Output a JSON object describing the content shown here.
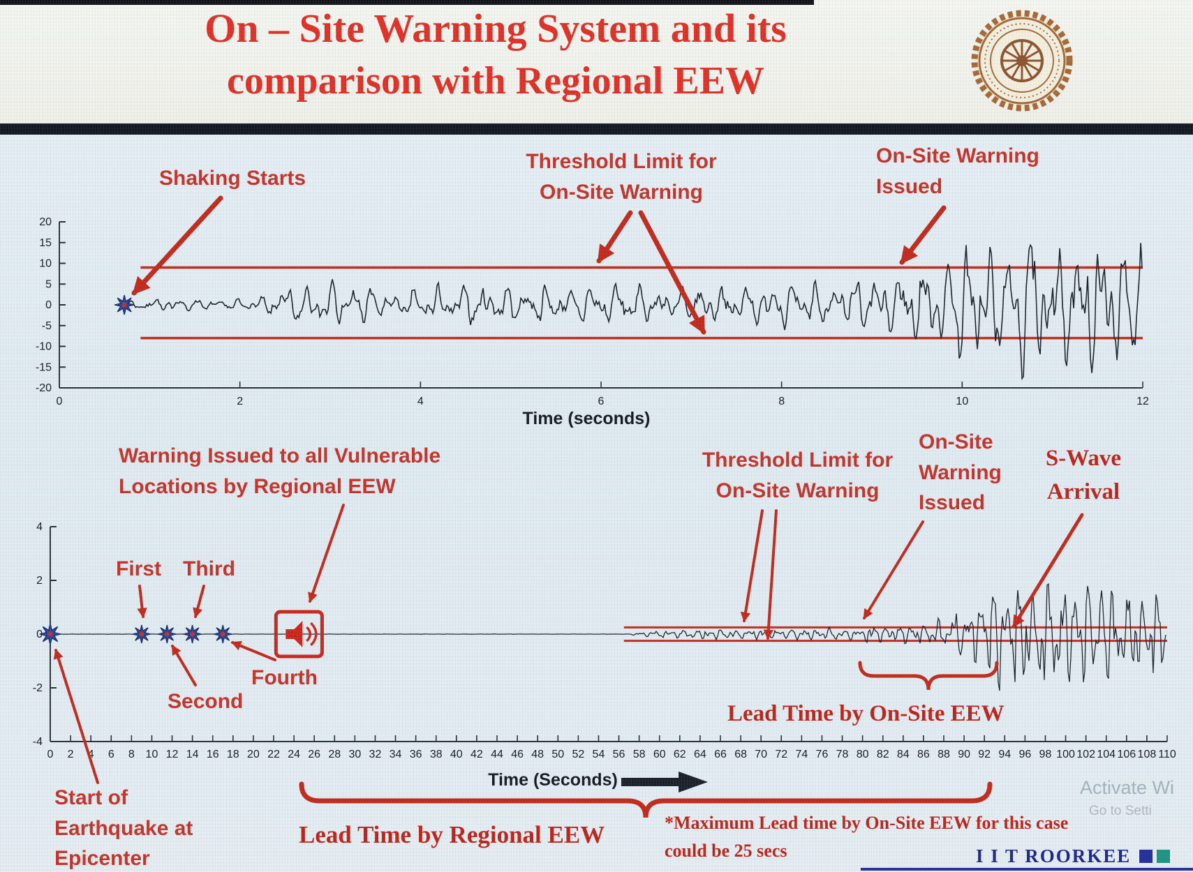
{
  "slide": {
    "title_line1": "On – Site Warning System and its",
    "title_line2": "comparison with Regional EEW",
    "logo": "iit-roorkee-circular-seal",
    "brand": "I I T ROORKEE",
    "watermark_line1": "Activate Wi",
    "watermark_line2": "Go to Setti"
  },
  "top_chart_annotations": {
    "shaking_starts": "Shaking Starts",
    "threshold_line1": "Threshold Limit for",
    "threshold_line2": "On-Site Warning",
    "issued_line1": "On-Site Warning",
    "issued_line2": "Issued"
  },
  "bottom_chart_annotations": {
    "regional_line1": "Warning Issued to all Vulnerable",
    "regional_line2": "Locations by Regional EEW",
    "first": "First",
    "second": "Second",
    "third": "Third",
    "fourth": "Fourth",
    "start_line1": "Start of",
    "start_line2": "Earthquake at",
    "start_line3": "Epicenter",
    "threshold_line1": "Threshold Limit for",
    "threshold_line2": "On-Site Warning",
    "onsite_line1": "On-Site",
    "onsite_line2": "Warning",
    "onsite_line3": "Issued",
    "swave_line1": "S-Wave",
    "swave_line2": "Arrival",
    "lead_time_onsite": "Lead Time by On-Site EEW",
    "lead_time_regional": "Lead Time by Regional EEW",
    "note_line1": "*Maximum Lead time by On-Site EEW for this case",
    "note_line2": "could be 25 secs"
  },
  "colors": {
    "title_red": "#e5271a",
    "annotation_red": "#c9291c",
    "threshold_red": "#c5200f",
    "trace_black": "#151a23",
    "star_blue": "#2b3f9d",
    "brand_navy": "#171d86",
    "brand_teal": "#13917b",
    "logo_brown": "#a6622c"
  },
  "chart_data": [
    {
      "type": "line",
      "name": "single-station-accelerogram-with-onsite-threshold",
      "xlabel": "Time (seconds)",
      "xlim": [
        0,
        12
      ],
      "ylim": [
        -20,
        20
      ],
      "x_ticks": [
        0,
        2,
        4,
        6,
        8,
        10,
        12
      ],
      "y_ticks": [
        20,
        15,
        10,
        5,
        0,
        -5,
        -10,
        -15,
        -20
      ],
      "grid": false,
      "threshold_upper": 9,
      "threshold_lower": -8,
      "threshold_x_range": [
        0.9,
        12
      ],
      "shaking_start_x": 0.72,
      "onsite_warning_issued_x": 9.35,
      "wave_start_x": 0.72,
      "envelope": [
        [
          0.72,
          0.5
        ],
        [
          0.95,
          1.4
        ],
        [
          2.2,
          1.1
        ],
        [
          2.45,
          3.8
        ],
        [
          3.0,
          4.6
        ],
        [
          3.8,
          3.0
        ],
        [
          4.6,
          4.4
        ],
        [
          5.4,
          3.6
        ],
        [
          6.2,
          4.6
        ],
        [
          7.0,
          3.5
        ],
        [
          7.8,
          4.3
        ],
        [
          8.6,
          4.9
        ],
        [
          9.25,
          6.2
        ],
        [
          9.7,
          8.5
        ],
        [
          10.2,
          12.5
        ],
        [
          10.7,
          15.5
        ],
        [
          11.1,
          12.0
        ],
        [
          11.5,
          15.0
        ],
        [
          12.0,
          11.5
        ]
      ],
      "wave_freq": [
        4.1,
        6.7,
        10.3
      ],
      "seed": 7
    },
    {
      "type": "line",
      "name": "regional-eew-vs-onsite-warning-timeline",
      "xlabel": "Time (Seconds)",
      "xlim": [
        0,
        110
      ],
      "ylim": [
        -4,
        4
      ],
      "x_ticks": {
        "start": 0,
        "end": 110,
        "step": 2
      },
      "y_ticks": [
        4,
        2,
        0,
        -2,
        -4
      ],
      "grid": false,
      "threshold_upper": 0.25,
      "threshold_lower": -0.25,
      "threshold_x_range": [
        56.5,
        110
      ],
      "epicenter_x": 0,
      "p_wave_detections_x": [
        9,
        11.5,
        14,
        17
      ],
      "regional_warning_x": 24.5,
      "onsite_warning_issued_x": 80,
      "s_wave_arrival_x": 93.5,
      "max_onsite_lead_time_secs": 25,
      "envelope": [
        [
          0,
          0.004
        ],
        [
          57,
          0.004
        ],
        [
          58.5,
          0.1
        ],
        [
          61,
          0.15
        ],
        [
          65,
          0.17
        ],
        [
          70,
          0.16
        ],
        [
          74,
          0.19
        ],
        [
          78,
          0.22
        ],
        [
          81,
          0.3
        ],
        [
          84,
          0.33
        ],
        [
          86.5,
          0.45
        ],
        [
          88.5,
          0.7
        ],
        [
          90.5,
          1.05
        ],
        [
          92.5,
          1.5
        ],
        [
          94,
          2.1
        ],
        [
          96,
          1.85
        ],
        [
          98.5,
          2.05
        ],
        [
          101,
          1.75
        ],
        [
          103.5,
          1.9
        ],
        [
          106,
          1.6
        ],
        [
          108,
          1.45
        ],
        [
          110,
          1.3
        ]
      ],
      "wave_freq": [
        0.75,
        1.3,
        2.05
      ],
      "seed": 13
    }
  ]
}
